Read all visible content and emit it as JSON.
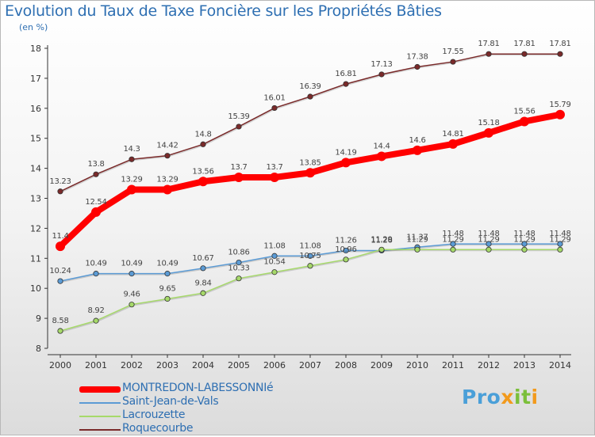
{
  "header": {
    "title": "Evolution du Taux de Taxe Foncière sur les Propriétés Bâties",
    "unit": "(en %)"
  },
  "brand": {
    "name": "Proxiti",
    "colors": [
      "#4a9fd8",
      "#f29a1c",
      "#7bbf3a"
    ]
  },
  "chart_data": {
    "type": "line",
    "title": "Evolution du Taux de Taxe Foncière sur les Propriétés Bâties",
    "ylabel": "(en %)",
    "xlabel": "",
    "ylim": [
      8,
      18
    ],
    "yticks": [
      8,
      9,
      10,
      11,
      12,
      13,
      14,
      15,
      16,
      17,
      18
    ],
    "grid": false,
    "legend_position": "bottom-left",
    "categories": [
      "2000",
      "2001",
      "2002",
      "2003",
      "2004",
      "2005",
      "2006",
      "2007",
      "2008",
      "2009",
      "2010",
      "2011",
      "2012",
      "2013",
      "2014"
    ],
    "series": [
      {
        "name": "Roquecourbe",
        "color": "#7a2a2a",
        "values": [
          13.23,
          13.8,
          14.3,
          14.42,
          14.8,
          15.39,
          16.01,
          16.39,
          16.81,
          17.13,
          17.38,
          17.55,
          17.81,
          17.81,
          17.81
        ],
        "labels": [
          "13.23",
          "13.8",
          "14.3",
          "14.42",
          "14.8",
          "15.39",
          "16.01",
          "16.39",
          "16.81",
          "17.13",
          "17.38",
          "17.55",
          "17.81",
          "17.81",
          "17.81"
        ]
      },
      {
        "name": "MONTREDON-LABESSONNIé",
        "color": "#ff0000",
        "values": [
          11.4,
          12.54,
          13.29,
          13.29,
          13.56,
          13.7,
          13.7,
          13.85,
          14.19,
          14.4,
          14.6,
          14.81,
          15.18,
          15.56,
          15.79
        ],
        "labels": [
          "11.4",
          "12.54",
          "13.29",
          "13.29",
          "13.56",
          "13.7",
          "13.7",
          "13.85",
          "14.19",
          "14.4",
          "14.6",
          "14.81",
          "15.18",
          "15.56",
          "15.79"
        ]
      },
      {
        "name": "Saint-Jean-de-Vals",
        "color": "#5b9bd5",
        "values": [
          10.24,
          10.49,
          10.49,
          10.49,
          10.67,
          10.86,
          11.08,
          11.08,
          11.26,
          11.26,
          11.37,
          11.48,
          11.48,
          11.48,
          11.48
        ],
        "labels": [
          "10.24",
          "10.49",
          "10.49",
          "10.49",
          "10.67",
          "10.86",
          "11.08",
          "11.08",
          "11.26",
          "11.26",
          "11.37",
          "11.48",
          "11.48",
          "11.48",
          "11.48"
        ]
      },
      {
        "name": "Lacrouzette",
        "color": "#a6d96a",
        "values": [
          8.58,
          8.92,
          9.46,
          9.65,
          9.84,
          10.33,
          10.54,
          10.75,
          10.96,
          11.29,
          11.29,
          11.29,
          11.29,
          11.29,
          11.29
        ],
        "labels": [
          "8.58",
          "8.92",
          "9.46",
          "9.65",
          "9.84",
          "10.33",
          "10.54",
          "10.75",
          "10.96",
          "11.29",
          "11.29",
          "11.29",
          "11.29",
          "11.29",
          "11.29"
        ]
      }
    ]
  },
  "legend": {
    "items": [
      {
        "label": "MONTREDON-LABESSONNIé",
        "color": "#ff0000",
        "thick": true
      },
      {
        "label": "Saint-Jean-de-Vals",
        "color": "#5b9bd5",
        "thick": false
      },
      {
        "label": "Lacrouzette",
        "color": "#a6d96a",
        "thick": false
      },
      {
        "label": "Roquecourbe",
        "color": "#7a2a2a",
        "thick": false
      }
    ]
  }
}
